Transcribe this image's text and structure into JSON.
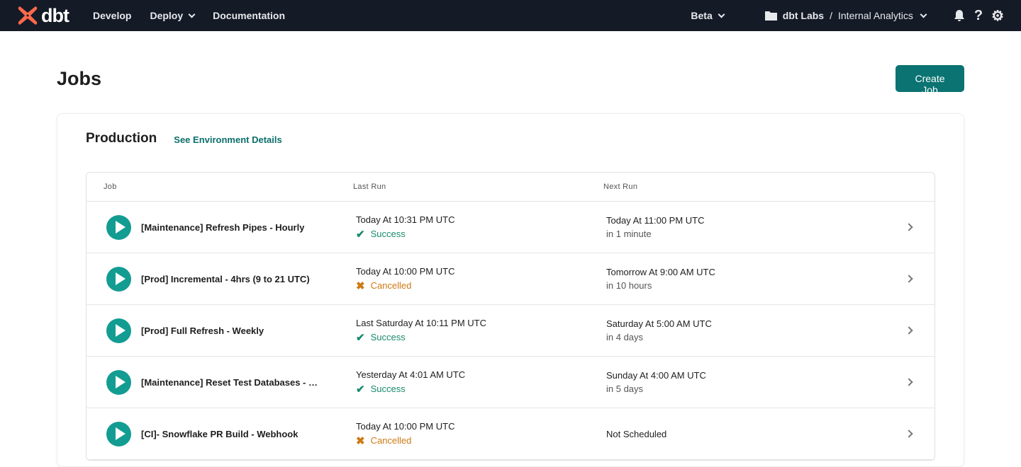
{
  "nav": {
    "brand": "dbt",
    "develop": "Develop",
    "deploy": "Deploy",
    "documentation": "Documentation",
    "beta": "Beta",
    "account": "dbt Labs",
    "separator": "/",
    "project": "Internal Analytics"
  },
  "page": {
    "title": "Jobs",
    "create_label": "Create Job"
  },
  "environment": {
    "name": "Production",
    "details_link": "See Environment Details"
  },
  "table": {
    "headers": [
      "Job",
      "Last Run",
      "Next Run"
    ],
    "rows": [
      {
        "name": "[Maintenance] Refresh Pipes - Hourly",
        "last_run": "Today At 10:31 PM UTC",
        "status": "Success",
        "next_run": "Today At 11:00 PM UTC",
        "next_rel": "in 1 minute"
      },
      {
        "name": "[Prod] Incremental - 4hrs (9 to 21 UTC)",
        "last_run": "Today At 10:00 PM UTC",
        "status": "Cancelled",
        "next_run": "Tomorrow At 9:00 AM UTC",
        "next_rel": "in 10 hours"
      },
      {
        "name": "[Prod] Full Refresh - Weekly",
        "last_run": "Last Saturday At 10:11 PM UTC",
        "status": "Success",
        "next_run": "Saturday At 5:00 AM UTC",
        "next_rel": "in 4 days"
      },
      {
        "name": "[Maintenance] Reset Test Databases - Weekly",
        "last_run": "Yesterday At 4:01 AM UTC",
        "status": "Success",
        "next_run": "Sunday At 4:00 AM UTC",
        "next_rel": "in 5 days"
      },
      {
        "name": "[CI]- Snowflake PR Build - Webhook",
        "last_run": "Today At 10:00 PM UTC",
        "status": "Cancelled",
        "next_run": "Not Scheduled",
        "next_rel": ""
      }
    ]
  },
  "colors": {
    "brand": "#ff694b",
    "primary": "#0b7372",
    "success": "#1a8a6e",
    "cancelled": "#cd7a14"
  }
}
